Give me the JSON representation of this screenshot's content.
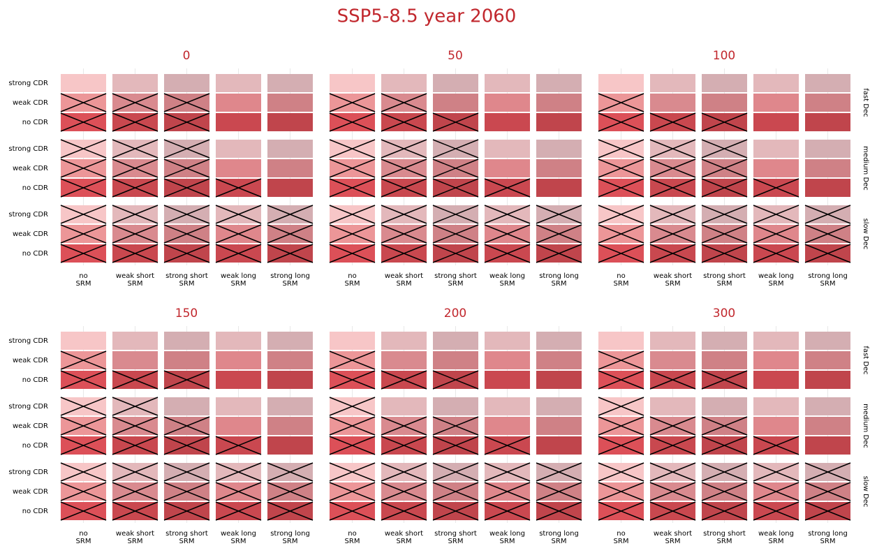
{
  "title": "SSP5-8.5 year 2060",
  "row_labels": [
    "strong CDR",
    "weak CDR",
    "no CDR"
  ],
  "column_labels": [
    [
      "no",
      "SRM"
    ],
    [
      "weak short",
      "SRM"
    ],
    [
      "strong short",
      "SRM"
    ],
    [
      "weak long",
      "SRM"
    ],
    [
      "strong long",
      "SRM"
    ]
  ],
  "group_labels": [
    "fast Dec",
    "medium Dec",
    "slow Dec"
  ],
  "cell_colors": [
    [
      "#f7c6c7",
      "#e3b8bb",
      "#d4aeb2",
      "#e3b8bb",
      "#d4aeb2"
    ],
    [
      "#ec9698",
      "#d98a8f",
      "#cf8186",
      "#df878c",
      "#cf8186"
    ],
    [
      "#dc5058",
      "#c9484f",
      "#c0454c",
      "#ca4850",
      "#c0454c"
    ]
  ],
  "panels": [
    {
      "title": "0",
      "crossed": [
        [
          [
            false,
            false,
            false,
            false,
            false
          ],
          [
            true,
            true,
            true,
            false,
            false
          ],
          [
            true,
            true,
            true,
            false,
            false
          ]
        ],
        [
          [
            true,
            true,
            true,
            false,
            false
          ],
          [
            true,
            true,
            true,
            false,
            false
          ],
          [
            true,
            true,
            true,
            true,
            false
          ]
        ],
        [
          [
            true,
            true,
            true,
            true,
            true
          ],
          [
            true,
            true,
            true,
            true,
            true
          ],
          [
            true,
            true,
            true,
            true,
            true
          ]
        ]
      ]
    },
    {
      "title": "50",
      "crossed": [
        [
          [
            false,
            false,
            false,
            false,
            false
          ],
          [
            true,
            true,
            false,
            false,
            false
          ],
          [
            true,
            true,
            true,
            false,
            false
          ]
        ],
        [
          [
            true,
            true,
            true,
            false,
            false
          ],
          [
            true,
            true,
            true,
            false,
            false
          ],
          [
            true,
            true,
            true,
            true,
            false
          ]
        ],
        [
          [
            true,
            true,
            true,
            true,
            true
          ],
          [
            true,
            true,
            true,
            true,
            true
          ],
          [
            true,
            true,
            true,
            true,
            true
          ]
        ]
      ]
    },
    {
      "title": "100",
      "crossed": [
        [
          [
            false,
            false,
            false,
            false,
            false
          ],
          [
            true,
            false,
            false,
            false,
            false
          ],
          [
            true,
            true,
            true,
            false,
            false
          ]
        ],
        [
          [
            true,
            true,
            true,
            false,
            false
          ],
          [
            true,
            true,
            true,
            false,
            false
          ],
          [
            true,
            true,
            true,
            true,
            false
          ]
        ],
        [
          [
            true,
            true,
            true,
            true,
            true
          ],
          [
            true,
            true,
            true,
            true,
            true
          ],
          [
            true,
            true,
            true,
            true,
            true
          ]
        ]
      ]
    },
    {
      "title": "150",
      "crossed": [
        [
          [
            false,
            false,
            false,
            false,
            false
          ],
          [
            true,
            false,
            false,
            false,
            false
          ],
          [
            true,
            true,
            true,
            false,
            false
          ]
        ],
        [
          [
            true,
            true,
            false,
            false,
            false
          ],
          [
            true,
            true,
            true,
            false,
            false
          ],
          [
            true,
            true,
            true,
            true,
            false
          ]
        ],
        [
          [
            true,
            true,
            true,
            true,
            true
          ],
          [
            true,
            true,
            true,
            true,
            true
          ],
          [
            true,
            true,
            true,
            true,
            true
          ]
        ]
      ]
    },
    {
      "title": "200",
      "crossed": [
        [
          [
            false,
            false,
            false,
            false,
            false
          ],
          [
            true,
            false,
            false,
            false,
            false
          ],
          [
            true,
            true,
            true,
            false,
            false
          ]
        ],
        [
          [
            true,
            false,
            false,
            false,
            false
          ],
          [
            true,
            true,
            true,
            false,
            false
          ],
          [
            true,
            true,
            true,
            true,
            false
          ]
        ],
        [
          [
            true,
            true,
            true,
            true,
            true
          ],
          [
            true,
            true,
            true,
            true,
            true
          ],
          [
            true,
            true,
            true,
            true,
            true
          ]
        ]
      ]
    },
    {
      "title": "300",
      "crossed": [
        [
          [
            false,
            false,
            false,
            false,
            false
          ],
          [
            true,
            false,
            false,
            false,
            false
          ],
          [
            true,
            true,
            true,
            false,
            false
          ]
        ],
        [
          [
            true,
            false,
            false,
            false,
            false
          ],
          [
            true,
            true,
            true,
            false,
            false
          ],
          [
            true,
            true,
            true,
            true,
            false
          ]
        ],
        [
          [
            true,
            true,
            true,
            true,
            true
          ],
          [
            true,
            true,
            true,
            true,
            true
          ],
          [
            true,
            true,
            true,
            true,
            true
          ]
        ]
      ]
    }
  ]
}
